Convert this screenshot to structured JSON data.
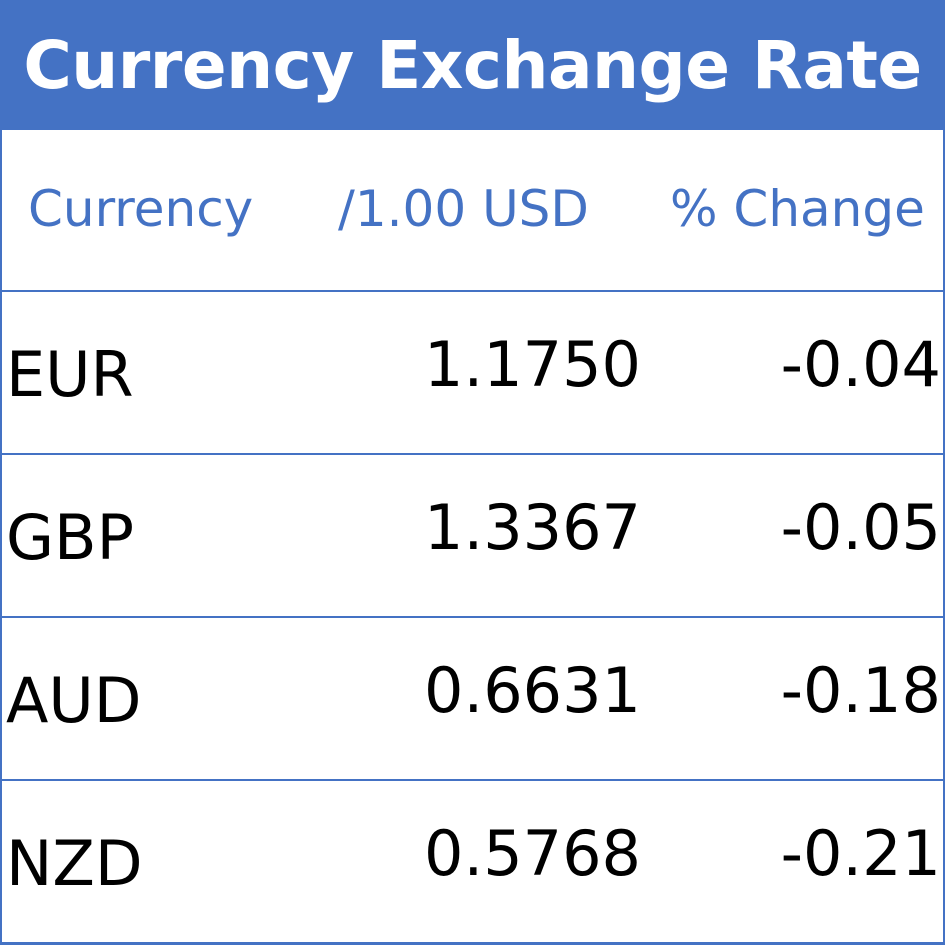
{
  "title": "Currency Exchange Rate",
  "chart_data": {
    "type": "table",
    "title": "Currency Exchange Rate",
    "columns": [
      "Currency",
      "/1.00 USD",
      "% Change"
    ],
    "rows": [
      {
        "currency": "EUR",
        "rate": "1.1750",
        "change": "-0.04"
      },
      {
        "currency": "GBP",
        "rate": "1.3367",
        "change": "-0.05"
      },
      {
        "currency": "AUD",
        "rate": "0.6631",
        "change": "-0.18"
      },
      {
        "currency": "NZD",
        "rate": "0.5768",
        "change": "-0.21"
      }
    ],
    "colors": {
      "accent": "#4472c4",
      "text": "#000000",
      "background": "#ffffff"
    }
  }
}
